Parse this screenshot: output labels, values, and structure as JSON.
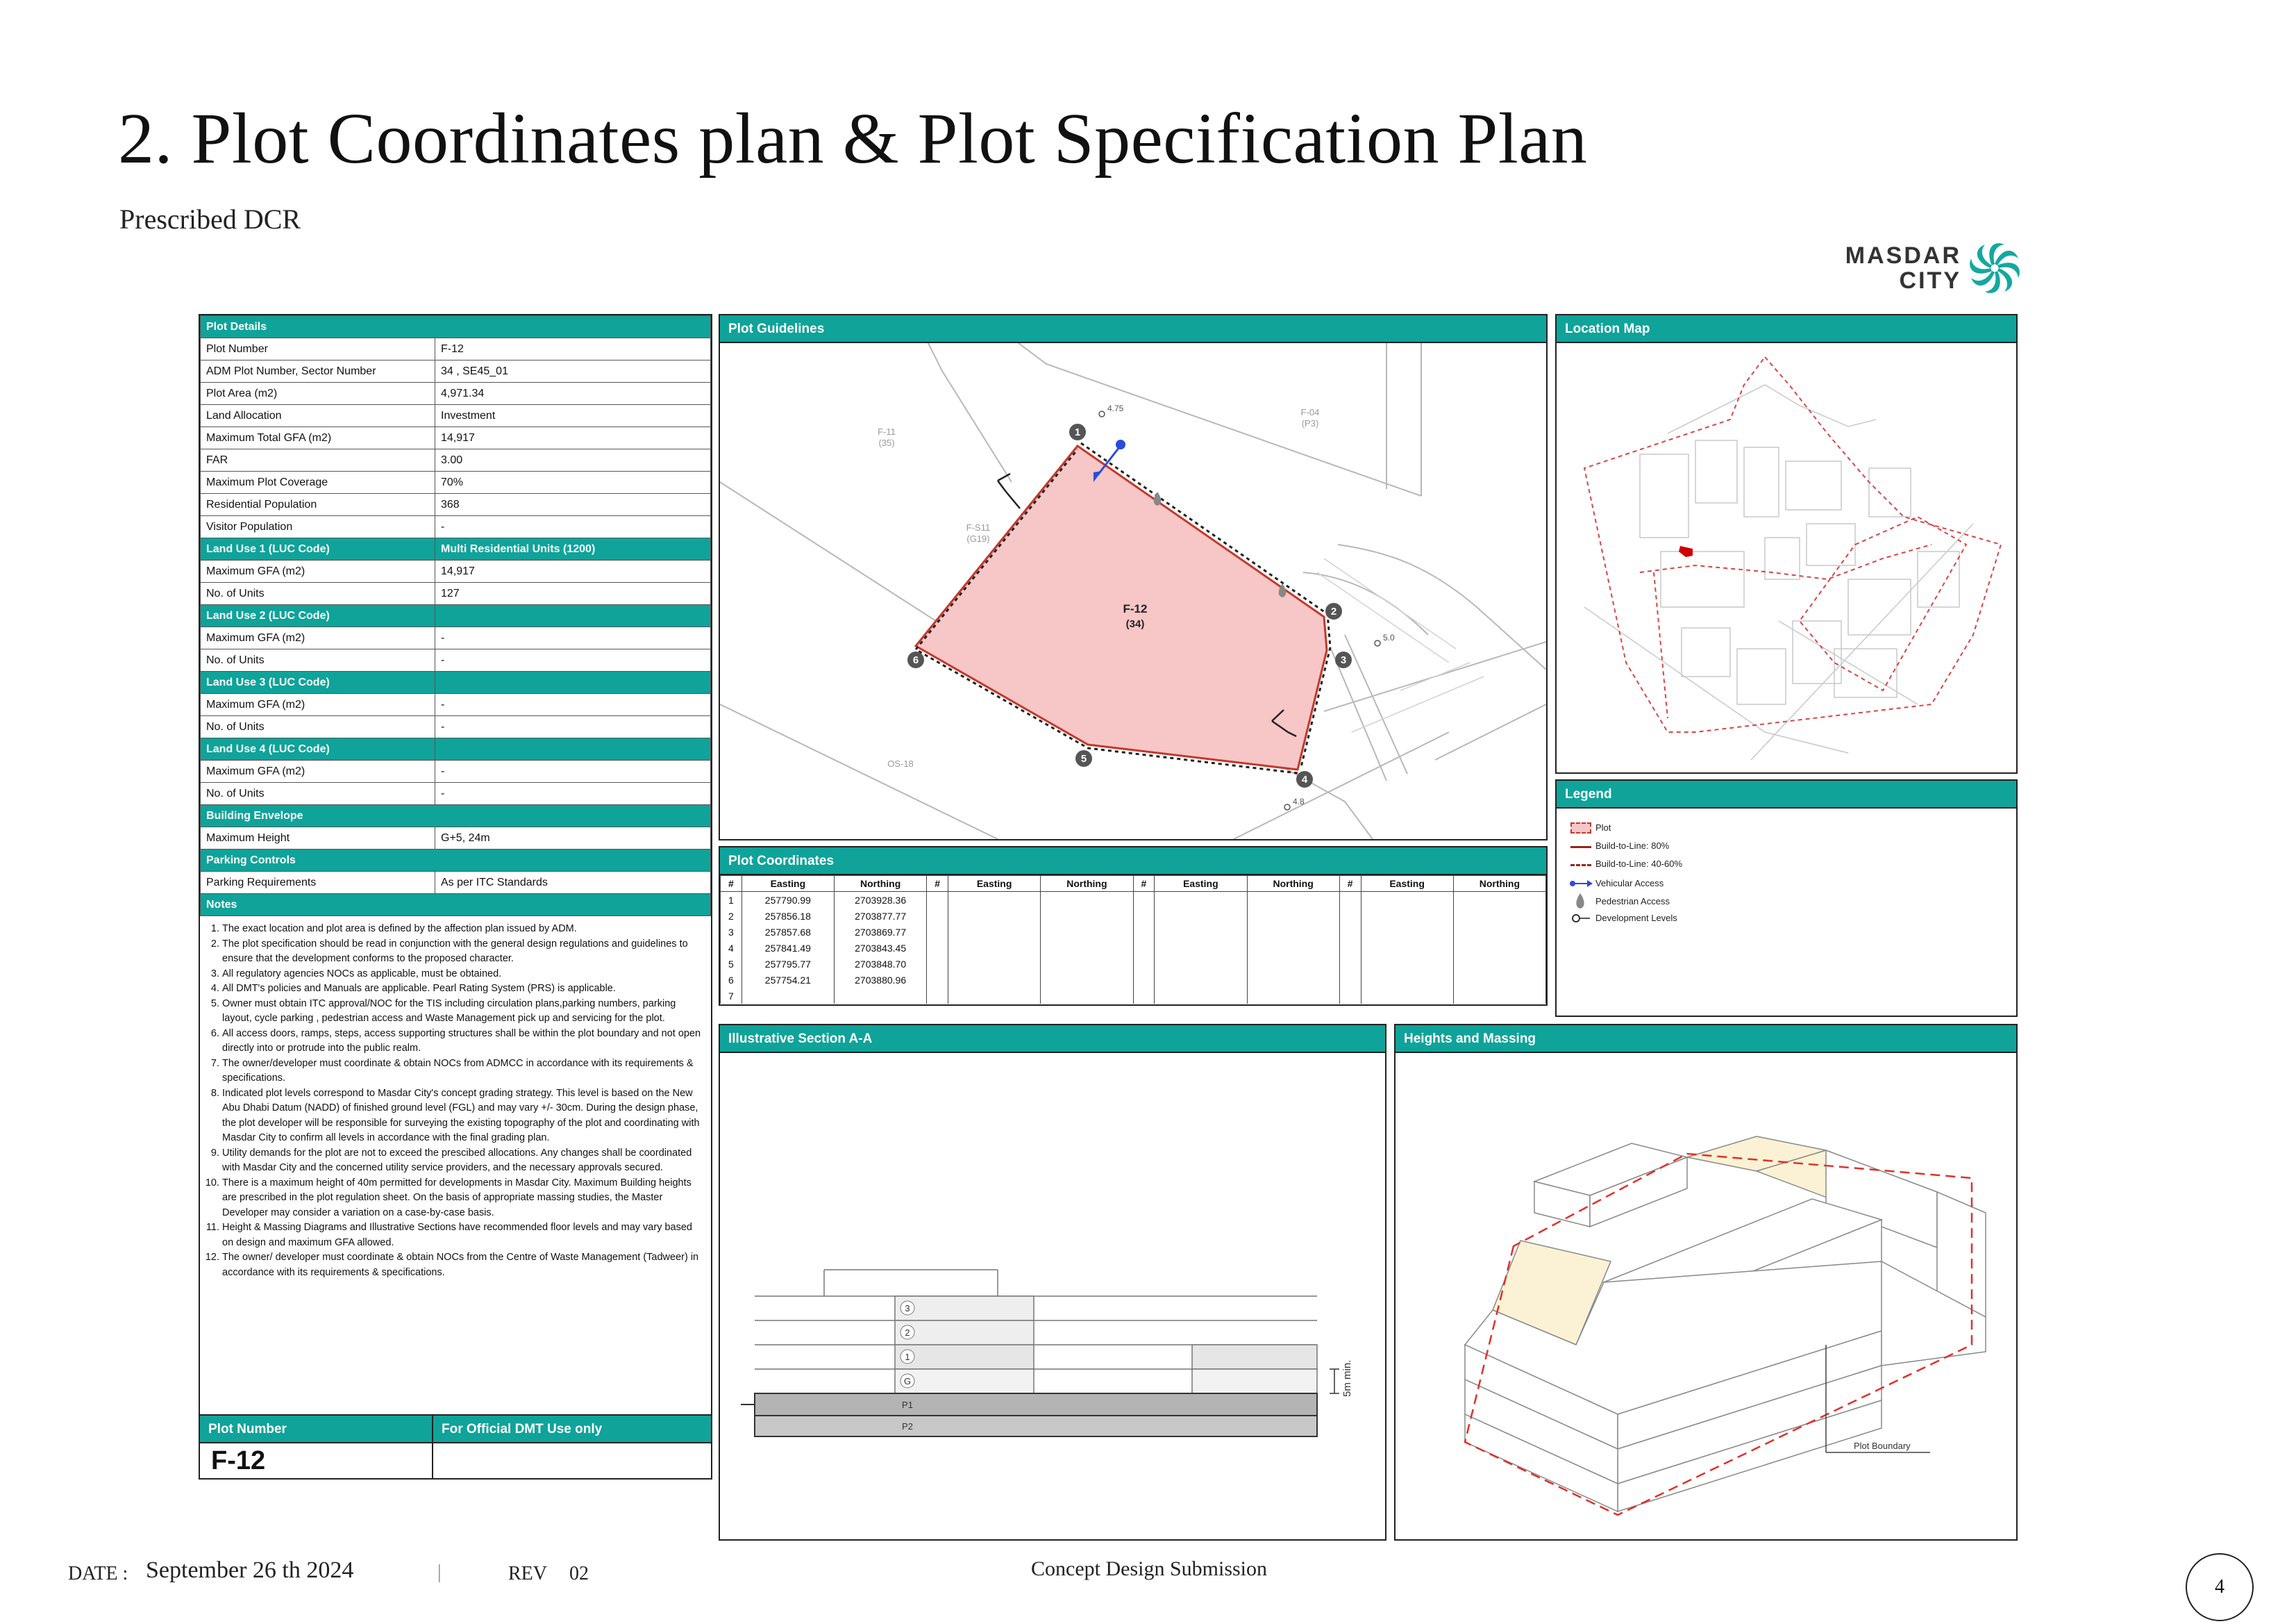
{
  "header": {
    "title": "2.  Plot Coordinates plan & Plot Specification Plan",
    "subtitle": "Prescribed DCR",
    "logo_line1": "MASDAR",
    "logo_line2": "CITY"
  },
  "plot_details": {
    "heading": "Plot Details",
    "rows": [
      {
        "label": "Plot Number",
        "value": "F-12"
      },
      {
        "label": "ADM Plot Number, Sector Number",
        "value": "34 , SE45_01"
      },
      {
        "label": "Plot Area (m2)",
        "value": "4,971.34"
      },
      {
        "label": "Land Allocation",
        "value": "Investment"
      },
      {
        "label": "Maximum Total GFA (m2)",
        "value": "14,917"
      },
      {
        "label": "FAR",
        "value": "3.00"
      },
      {
        "label": "Maximum Plot Coverage",
        "value": "70%"
      },
      {
        "label": "Residential Population",
        "value": "368"
      },
      {
        "label": "Visitor Population",
        "value": "-"
      }
    ],
    "land_use_1": {
      "heading": "Land Use 1 (LUC Code)",
      "value": "Multi Residential Units (1200)",
      "gfa_label": "Maximum GFA (m2)",
      "gfa": "14,917",
      "units_label": "No. of Units",
      "units": "127"
    },
    "land_use_2": {
      "heading": "Land Use 2 (LUC Code)",
      "value": "",
      "gfa_label": "Maximum GFA (m2)",
      "gfa": "-",
      "units_label": "No. of Units",
      "units": "-"
    },
    "land_use_3": {
      "heading": "Land Use 3 (LUC Code)",
      "value": "",
      "gfa_label": "Maximum GFA (m2)",
      "gfa": "-",
      "units_label": "No. of Units",
      "units": "-"
    },
    "land_use_4": {
      "heading": "Land Use 4 (LUC Code)",
      "value": "",
      "gfa_label": "Maximum GFA (m2)",
      "gfa": "-",
      "units_label": "No. of Units",
      "units": "-"
    },
    "building_envelope": {
      "heading": "Building Envelope",
      "label": "Maximum Height",
      "value": "G+5, 24m"
    },
    "parking": {
      "heading": "Parking Controls",
      "label": "Parking Requirements",
      "value": "As per ITC Standards"
    },
    "notes_heading": "Notes",
    "notes": [
      "The exact location and plot area is defined by the affection plan issued by ADM.",
      "The plot specification should be read in conjunction with the general design regulations and guidelines to ensure that the development conforms to the proposed character.",
      "All regulatory agencies NOCs as applicable, must be obtained.",
      "All DMT's policies and Manuals are applicable. Pearl Rating System (PRS) is applicable.",
      "Owner must obtain ITC approval/NOC for the TIS including circulation plans,parking numbers, parking layout, cycle parking , pedestrian access and Waste Management pick up and servicing for the plot.",
      "All access doors, ramps, steps, access supporting structures shall be within the plot boundary and not open directly into or protrude into the public realm.",
      "The owner/developer must coordinate & obtain NOCs from ADMCC in accordance with its requirements & specifications.",
      "Indicated plot levels correspond to Masdar City's concept grading strategy. This level is based on the New Abu Dhabi Datum (NADD) of finished ground level (FGL) and may vary +/- 30cm. During the design phase, the plot developer will be responsible for surveying the existing topography of the plot and coordinating with Masdar City to confirm all levels in accordance with the final grading plan.",
      "Utility demands for the plot are not to exceed the prescibed allocations. Any changes shall be coordinated with Masdar City and the concerned utility service providers, and the necessary approvals secured.",
      "There is a maximum height of 40m permitted for developments in Masdar City. Maximum Building heights are prescribed in the plot regulation sheet. On the basis of appropriate massing studies, the Master Developer may consider a variation on a case-by-case basis.",
      "Height & Massing Diagrams and Illustrative Sections have recommended floor levels and may vary based on design and maximum GFA allowed.",
      "The owner/ developer must coordinate & obtain NOCs from the Centre of Waste Management (Tadweer) in accordance with its requirements & specifications."
    ],
    "footer_label1": "Plot Number",
    "footer_label2": "For Official DMT Use only",
    "footer_plot": "F-12"
  },
  "guidelines": {
    "heading": "Plot Guidelines",
    "plot_label": "F-12",
    "plot_sub": "(34)",
    "neighbors": [
      "F-11",
      "(35)",
      "F-04",
      "(P3)",
      "F-S11",
      "(G19)",
      "OS-18"
    ],
    "levels": [
      "4.75",
      "5.0",
      "4.8"
    ],
    "points": [
      "1",
      "2",
      "3",
      "4",
      "5",
      "6"
    ]
  },
  "location_map": {
    "heading": "Location Map"
  },
  "legend": {
    "heading": "Legend",
    "items": [
      "Plot",
      "Build-to-Line: 80%",
      "Build-to-Line: 40-60%",
      "Vehicular Access",
      "Pedestrian Access",
      "Development Levels"
    ]
  },
  "coordinates": {
    "heading": "Plot Coordinates",
    "columns": [
      "#",
      "Easting",
      "Northing"
    ],
    "rows": [
      {
        "n": "1",
        "e": "257790.99",
        "no": "2703928.36"
      },
      {
        "n": "2",
        "e": "257856.18",
        "no": "2703877.77"
      },
      {
        "n": "3",
        "e": "257857.68",
        "no": "2703869.77"
      },
      {
        "n": "4",
        "e": "257841.49",
        "no": "2703843.45"
      },
      {
        "n": "5",
        "e": "257795.77",
        "no": "2703848.70"
      },
      {
        "n": "6",
        "e": "257754.21",
        "no": "2703880.96"
      },
      {
        "n": "7",
        "e": "",
        "no": ""
      }
    ]
  },
  "section": {
    "heading": "Illustrative Section A-A",
    "levels": [
      "3",
      "2",
      "1",
      "G",
      "P1",
      "P2"
    ],
    "dim_label": "5m min."
  },
  "massing": {
    "heading": "Heights and Massing",
    "boundary_label": "Plot Boundary"
  },
  "footer": {
    "date_label": "DATE :",
    "date": "September 26 th 2024",
    "separator": "|",
    "rev_label": "REV",
    "rev": "02",
    "center": "Concept Design Submission",
    "page": "4"
  },
  "colors": {
    "accent": "#0fa39a",
    "plot_fill": "#f7c6c7",
    "plot_edge": "#c0392b"
  }
}
